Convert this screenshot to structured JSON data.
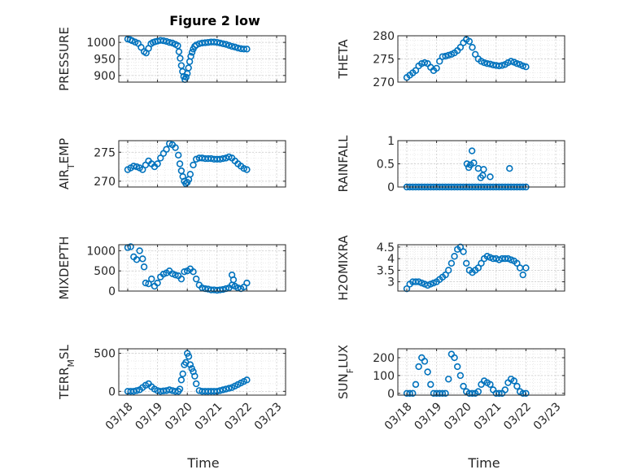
{
  "figure": {
    "title": "Figure 2 low",
    "xlabel": "Time",
    "xtick_labels": [
      "03/18",
      "03/19",
      "03/20",
      "03/21",
      "03/22",
      "03/23"
    ],
    "marker_color": "#0072BD",
    "grid": "dotted"
  },
  "chart_data": [
    {
      "type": "scatter",
      "ylabel": "PRESSURE",
      "ylim": [
        880,
        1020
      ],
      "yticks": [
        900,
        950,
        1000
      ],
      "x": [
        0.0,
        0.08,
        0.15,
        0.25,
        0.35,
        0.45,
        0.55,
        0.62,
        0.7,
        0.78,
        0.85,
        0.92,
        1.0,
        1.1,
        1.2,
        1.3,
        1.4,
        1.5,
        1.6,
        1.68,
        1.72,
        1.76,
        1.8,
        1.84,
        1.88,
        1.92,
        1.96,
        2.0,
        2.04,
        2.08,
        2.12,
        2.16,
        2.2,
        2.25,
        2.3,
        2.4,
        2.5,
        2.6,
        2.7,
        2.8,
        2.9,
        3.0,
        3.1,
        3.2,
        3.3,
        3.4,
        3.5,
        3.6,
        3.7,
        3.8,
        3.9,
        4.0
      ],
      "y": [
        1010,
        1008,
        1005,
        1001,
        997,
        985,
        972,
        968,
        982,
        996,
        1000,
        1002,
        1004,
        1006,
        1005,
        1003,
        1000,
        998,
        994,
        990,
        972,
        952,
        930,
        912,
        897,
        888,
        895,
        906,
        923,
        942,
        958,
        970,
        980,
        988,
        992,
        996,
        998,
        999,
        1000,
        1001,
        1001,
        1000,
        998,
        996,
        994,
        991,
        988,
        986,
        983,
        981,
        980,
        980
      ]
    },
    {
      "type": "scatter",
      "ylabel": "THETA",
      "ylim": [
        270,
        280
      ],
      "yticks": [
        270,
        275,
        280
      ],
      "x": [
        0.0,
        0.1,
        0.2,
        0.3,
        0.4,
        0.5,
        0.6,
        0.7,
        0.8,
        0.9,
        1.0,
        1.1,
        1.2,
        1.3,
        1.4,
        1.5,
        1.6,
        1.7,
        1.8,
        1.9,
        2.0,
        2.1,
        2.2,
        2.3,
        2.4,
        2.5,
        2.6,
        2.7,
        2.8,
        2.9,
        3.0,
        3.1,
        3.2,
        3.3,
        3.4,
        3.5,
        3.6,
        3.7,
        3.8,
        3.9,
        4.0
      ],
      "y": [
        271.0,
        271.5,
        272.0,
        272.5,
        273.5,
        274.0,
        274.2,
        274.0,
        273.2,
        272.5,
        273.0,
        274.5,
        275.5,
        275.6,
        275.8,
        276.0,
        276.3,
        276.8,
        277.5,
        278.5,
        279.2,
        278.8,
        277.5,
        276.0,
        275.0,
        274.5,
        274.2,
        274.0,
        273.9,
        273.7,
        273.6,
        273.5,
        273.6,
        273.8,
        274.2,
        274.5,
        274.3,
        274.0,
        273.8,
        273.5,
        273.3
      ]
    },
    {
      "type": "scatter",
      "ylabel": "AIR_TEMP",
      "ylim": [
        269,
        277
      ],
      "yticks": [
        270,
        275
      ],
      "x": [
        0.0,
        0.1,
        0.2,
        0.3,
        0.4,
        0.5,
        0.6,
        0.7,
        0.8,
        0.9,
        1.0,
        1.1,
        1.2,
        1.3,
        1.4,
        1.5,
        1.6,
        1.7,
        1.75,
        1.8,
        1.85,
        1.9,
        1.95,
        2.0,
        2.05,
        2.1,
        2.2,
        2.3,
        2.4,
        2.5,
        2.6,
        2.7,
        2.8,
        2.9,
        3.0,
        3.1,
        3.2,
        3.3,
        3.4,
        3.5,
        3.6,
        3.7,
        3.8,
        3.9,
        4.0
      ],
      "y": [
        272.0,
        272.3,
        272.6,
        272.5,
        272.3,
        272.0,
        272.8,
        273.5,
        273.0,
        272.5,
        273.0,
        274.0,
        274.8,
        275.5,
        276.5,
        276.3,
        275.8,
        274.5,
        273.0,
        271.8,
        270.8,
        270.0,
        269.6,
        269.8,
        270.3,
        271.2,
        272.8,
        273.8,
        274.0,
        274.0,
        273.9,
        273.9,
        273.9,
        273.8,
        273.8,
        273.8,
        273.9,
        274.0,
        274.2,
        274.0,
        273.5,
        273.0,
        272.6,
        272.2,
        272.0
      ]
    },
    {
      "type": "scatter",
      "ylabel": "RAINFALL",
      "ylim": [
        0,
        1
      ],
      "yticks": [
        0,
        0.5,
        1
      ],
      "x": [
        0.0,
        0.1,
        0.2,
        0.3,
        0.4,
        0.5,
        0.6,
        0.7,
        0.8,
        0.9,
        1.0,
        1.1,
        1.2,
        1.3,
        1.4,
        1.5,
        1.6,
        1.7,
        1.8,
        1.9,
        2.0,
        2.1,
        2.2,
        2.3,
        2.4,
        2.5,
        2.6,
        2.7,
        2.8,
        2.9,
        3.0,
        3.1,
        3.2,
        3.3,
        3.4,
        3.5,
        3.6,
        3.7,
        3.8,
        3.9,
        4.0,
        2.02,
        2.08,
        2.14,
        2.19,
        2.25,
        2.4,
        2.48,
        2.55,
        2.58,
        2.8,
        3.45
      ],
      "y": [
        0,
        0,
        0,
        0,
        0,
        0,
        0,
        0,
        0,
        0,
        0,
        0,
        0,
        0,
        0,
        0,
        0,
        0,
        0,
        0,
        0,
        0,
        0,
        0,
        0,
        0,
        0,
        0,
        0,
        0,
        0,
        0,
        0,
        0,
        0,
        0,
        0,
        0,
        0,
        0,
        0,
        0.5,
        0.42,
        0.48,
        0.78,
        0.52,
        0.4,
        0.2,
        0.25,
        0.38,
        0.22,
        0.4
      ]
    },
    {
      "type": "scatter",
      "ylabel": "MIXDEPTH",
      "ylim": [
        0,
        1150
      ],
      "yticks": [
        0,
        500,
        1000
      ],
      "x": [
        0.0,
        0.1,
        0.2,
        0.3,
        0.4,
        0.5,
        0.55,
        0.6,
        0.7,
        0.8,
        0.9,
        1.0,
        1.1,
        1.2,
        1.3,
        1.4,
        1.5,
        1.6,
        1.7,
        1.8,
        1.9,
        2.0,
        2.1,
        2.2,
        2.3,
        2.4,
        2.5,
        2.6,
        2.7,
        2.8,
        2.9,
        3.0,
        3.1,
        3.2,
        3.3,
        3.4,
        3.5,
        3.6,
        3.7,
        3.8,
        3.9,
        4.0,
        3.5,
        3.55
      ],
      "y": [
        1080,
        1100,
        850,
        780,
        1000,
        800,
        600,
        200,
        180,
        300,
        120,
        200,
        350,
        420,
        450,
        500,
        430,
        400,
        380,
        300,
        480,
        500,
        550,
        480,
        300,
        150,
        80,
        60,
        50,
        30,
        30,
        20,
        30,
        40,
        60,
        80,
        150,
        120,
        80,
        60,
        100,
        200,
        400,
        280
      ]
    },
    {
      "type": "scatter",
      "ylabel": "H2OMIXRA",
      "ylim": [
        2.6,
        4.6
      ],
      "yticks": [
        3,
        3.5,
        4,
        4.5
      ],
      "x": [
        0.0,
        0.1,
        0.2,
        0.3,
        0.4,
        0.5,
        0.6,
        0.7,
        0.8,
        0.9,
        1.0,
        1.1,
        1.2,
        1.3,
        1.4,
        1.5,
        1.6,
        1.7,
        1.8,
        1.9,
        2.0,
        2.1,
        2.2,
        2.3,
        2.4,
        2.5,
        2.6,
        2.7,
        2.8,
        2.9,
        3.0,
        3.1,
        3.2,
        3.3,
        3.4,
        3.5,
        3.6,
        3.7,
        3.8,
        3.9,
        4.0
      ],
      "y": [
        2.7,
        2.9,
        3.0,
        3.0,
        3.0,
        2.95,
        2.9,
        2.85,
        2.9,
        2.95,
        3.0,
        3.1,
        3.2,
        3.3,
        3.5,
        3.8,
        4.1,
        4.4,
        4.5,
        4.3,
        3.8,
        3.5,
        3.4,
        3.5,
        3.6,
        3.8,
        4.0,
        4.1,
        4.05,
        4.0,
        4.0,
        3.95,
        4.0,
        4.0,
        4.0,
        3.95,
        3.9,
        3.8,
        3.6,
        3.3,
        3.6
      ]
    },
    {
      "type": "scatter",
      "ylabel": "TERR_MSL",
      "ylim": [
        -50,
        560
      ],
      "yticks": [
        0,
        500
      ],
      "x": [
        0.0,
        0.1,
        0.2,
        0.3,
        0.4,
        0.5,
        0.6,
        0.7,
        0.8,
        0.9,
        1.0,
        1.1,
        1.2,
        1.3,
        1.4,
        1.5,
        1.6,
        1.7,
        1.75,
        1.8,
        1.85,
        1.9,
        1.95,
        2.0,
        2.05,
        2.1,
        2.15,
        2.2,
        2.25,
        2.3,
        2.4,
        2.5,
        2.6,
        2.7,
        2.8,
        2.9,
        3.0,
        3.1,
        3.2,
        3.3,
        3.4,
        3.5,
        3.6,
        3.7,
        3.8,
        3.9,
        4.0
      ],
      "y": [
        0,
        0,
        0,
        10,
        20,
        50,
        80,
        100,
        60,
        30,
        10,
        0,
        5,
        10,
        20,
        10,
        0,
        0,
        30,
        150,
        230,
        350,
        380,
        500,
        460,
        350,
        300,
        260,
        200,
        100,
        10,
        0,
        0,
        0,
        0,
        0,
        0,
        10,
        20,
        30,
        40,
        50,
        70,
        90,
        110,
        130,
        150
      ]
    },
    {
      "type": "scatter",
      "ylabel": "SUN_FLUX",
      "ylim": [
        -10,
        250
      ],
      "yticks": [
        0,
        100,
        200
      ],
      "x": [
        0.0,
        0.1,
        0.2,
        0.3,
        0.4,
        0.5,
        0.6,
        0.7,
        0.8,
        0.9,
        1.0,
        1.1,
        1.2,
        1.3,
        1.4,
        1.5,
        1.6,
        1.7,
        1.8,
        1.9,
        2.0,
        2.1,
        2.2,
        2.3,
        2.4,
        2.5,
        2.6,
        2.7,
        2.8,
        2.9,
        3.0,
        3.1,
        3.2,
        3.3,
        3.4,
        3.5,
        3.6,
        3.7,
        3.8,
        3.9,
        4.0
      ],
      "y": [
        0,
        0,
        0,
        50,
        150,
        200,
        180,
        120,
        50,
        0,
        0,
        0,
        0,
        0,
        80,
        220,
        200,
        150,
        100,
        40,
        10,
        0,
        0,
        0,
        10,
        50,
        70,
        60,
        50,
        20,
        0,
        0,
        0,
        20,
        60,
        80,
        70,
        40,
        10,
        0,
        0
      ]
    }
  ]
}
